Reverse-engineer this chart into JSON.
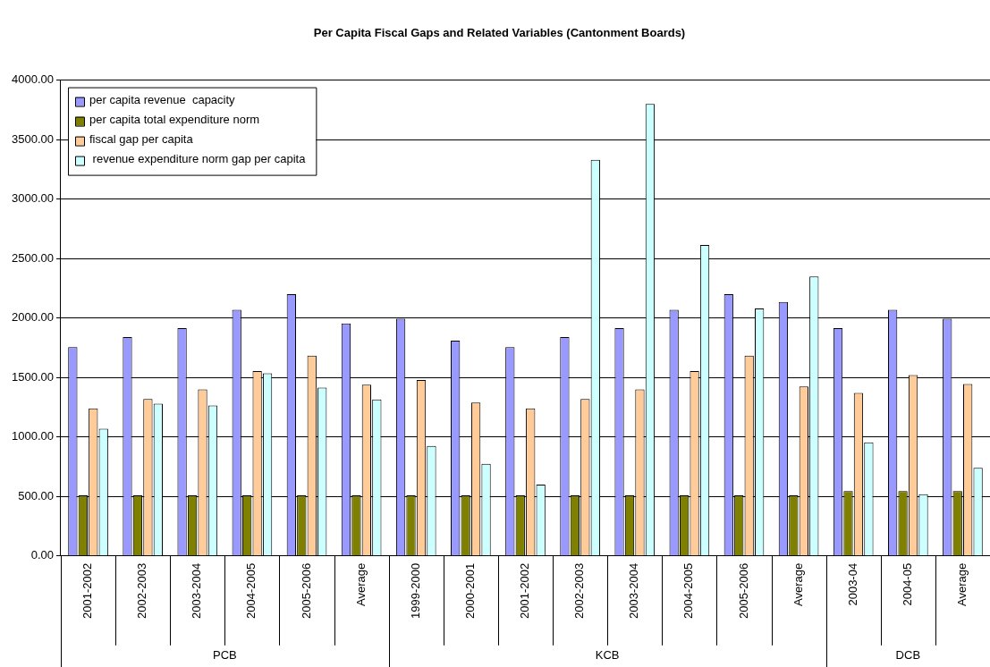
{
  "chart_data": {
    "type": "bar",
    "title": "Per Capita Fiscal Gaps and Related Variables (Cantonment Boards)",
    "categories": [
      "2001-2002",
      "2002-2003",
      "2003-2004",
      "2004-2005",
      "2005-2006",
      "Average",
      "1999-2000",
      "2000-2001",
      "2001-2002",
      "2002-2003",
      "2003-2004",
      "2004-2005",
      "2005-2006",
      "Average",
      "2003-04",
      "2004-05",
      "Average"
    ],
    "series": [
      {
        "name": "per capita revenue  capacity",
        "color": "#9999ff",
        "values": [
          1755,
          1840,
          1915,
          2070,
          2200,
          1955,
          1995,
          1810,
          1755,
          1840,
          1915,
          2070,
          2200,
          2135,
          1915,
          2070,
          1995
        ]
      },
      {
        "name": "per capita total expenditure norm",
        "color": "#808000",
        "values": [
          510,
          510,
          510,
          510,
          510,
          510,
          510,
          510,
          510,
          510,
          510,
          510,
          510,
          510,
          545,
          545,
          545
        ]
      },
      {
        "name": "fiscal gap per capita",
        "color": "#ffcc99",
        "values": [
          1240,
          1320,
          1400,
          1555,
          1685,
          1440,
          1480,
          1290,
          1240,
          1320,
          1400,
          1555,
          1685,
          1425,
          1370,
          1520,
          1445
        ]
      },
      {
        "name": " revenue expenditure norm gap per capita",
        "color": "#ccffff",
        "values": [
          1070,
          1280,
          1265,
          1535,
          1415,
          1315,
          925,
          775,
          600,
          3330,
          3800,
          2615,
          2080,
          2350,
          955,
          520,
          740
        ]
      }
    ],
    "ylim": [
      0,
      4000
    ],
    "yticks": [
      {
        "value": 0,
        "label": "0.00"
      },
      {
        "value": 500,
        "label": "500.00"
      },
      {
        "value": 1000,
        "label": "1000.00"
      },
      {
        "value": 1500,
        "label": "1500.00"
      },
      {
        "value": 2000,
        "label": "2000.00"
      },
      {
        "value": 2500,
        "label": "2500.00"
      },
      {
        "value": 3000,
        "label": "3000.00"
      },
      {
        "value": 3500,
        "label": "3500.00"
      },
      {
        "value": 4000,
        "label": "4000.00"
      }
    ],
    "grid": "y",
    "legend": "top left",
    "annotations": [
      "PCB",
      "KCB",
      "DCB"
    ]
  }
}
